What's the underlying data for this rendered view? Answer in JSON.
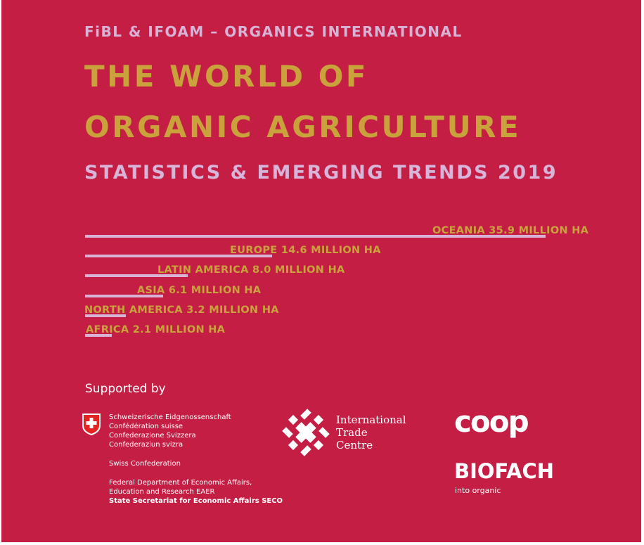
{
  "cover": {
    "publisher": "FiBL & IFOAM – ORGANICS INTERNATIONAL",
    "title_line1": "THE WORLD OF",
    "title_line2": "ORGANIC AGRICULTURE",
    "subtitle": "STATISTICS & EMERGING TRENDS 2019",
    "colors": {
      "background": "#c41e45",
      "gold": "#c9a23c",
      "lilac": "#d9b3d6"
    }
  },
  "chart_data": {
    "type": "bar",
    "orientation": "horizontal",
    "unit": "MILLION HA",
    "categories": [
      "OCEANIA",
      "EUROPE",
      "LATIN AMERICA",
      "ASIA",
      "NORTH AMERICA",
      "AFRICA"
    ],
    "values": [
      35.9,
      14.6,
      8.0,
      6.1,
      3.2,
      2.1
    ],
    "labels": [
      "OCEANIA 35.9 MILLION HA",
      "EUROPE 14.6 MILLION HA",
      "LATIN AMERICA 8.0 MILLION HA",
      "ASIA 6.1 MILLION HA",
      "NORTH AMERICA 3.2 MILLION HA",
      "AFRICA 2.1 MILLION HA"
    ]
  },
  "supporters": {
    "heading": "Supported by",
    "swiss": {
      "flag_icon": "swiss-cross-icon",
      "lines": [
        "Schweizerische Eidgenossenschaft",
        "Confédération suisse",
        "Confederazione Svizzera",
        "Confederaziun svizra"
      ],
      "confederation": "Swiss Confederation",
      "dept_lines": [
        "Federal Department of Economic Affairs,",
        "Education and Research EAER"
      ],
      "seco": "State Secretariat for Economic Affairs SECO"
    },
    "itc": {
      "logo_icon": "itc-logo-icon",
      "name_lines": [
        "International",
        "Trade",
        "Centre"
      ]
    },
    "coop": {
      "name": "coop"
    },
    "biofach": {
      "name": "BIOFACH",
      "tagline": "into organic"
    }
  }
}
